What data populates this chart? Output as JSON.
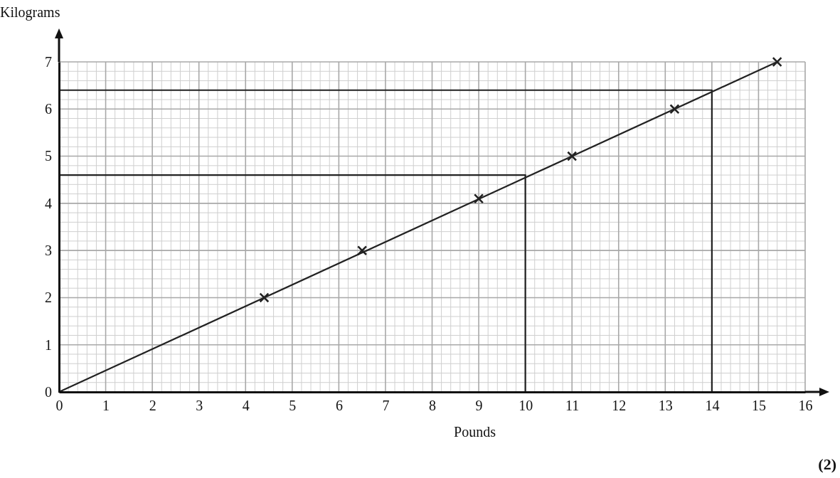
{
  "chart_data": {
    "type": "scatter",
    "xlabel": "Pounds",
    "ylabel": "Kilograms",
    "xlim": [
      0,
      16
    ],
    "ylim": [
      0,
      7
    ],
    "xticks": [
      0,
      1,
      2,
      3,
      4,
      5,
      6,
      7,
      8,
      9,
      10,
      11,
      12,
      13,
      14,
      15,
      16
    ],
    "yticks": [
      0,
      1,
      2,
      3,
      4,
      5,
      6,
      7
    ],
    "grid": true,
    "series": [
      {
        "color": "#222222",
        "marker": "cross",
        "x": [
          4.4,
          6.5,
          9,
          11,
          13.2,
          15.4
        ],
        "values": [
          2,
          3,
          4.1,
          5,
          6,
          7
        ]
      },
      {
        "type": "line",
        "color": "#222222",
        "marker": "none",
        "x": [
          0,
          15.4
        ],
        "values": [
          0,
          7
        ]
      },
      {
        "type": "line",
        "color": "#222222",
        "marker": "none",
        "x": [
          0,
          10,
          10
        ],
        "values": [
          4.6,
          4.6,
          0
        ]
      },
      {
        "type": "line",
        "color": "#222222",
        "marker": "none",
        "x": [
          0,
          14,
          14
        ],
        "values": [
          6.4,
          6.4,
          0
        ]
      }
    ],
    "annotations": [
      "(2)"
    ]
  }
}
